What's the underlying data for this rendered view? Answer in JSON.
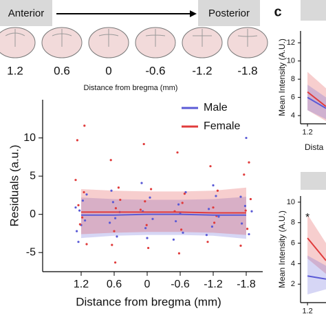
{
  "header": {
    "anterior": "Anterior",
    "posterior": "Posterior",
    "positions": [
      1.2,
      0.6,
      0,
      -0.6,
      -1.2,
      -1.8
    ],
    "xlabel": "Distance from bregma (mm)"
  },
  "panel_label": "c",
  "chart_data": [
    {
      "type": "scatter",
      "ylabel": "Residuals (a.u.)",
      "xlabel": "Distance from bregma (mm)",
      "xlim": [
        1.9,
        -2.1
      ],
      "xticks": [
        1.2,
        0.6,
        0,
        -0.6,
        -1.2,
        -1.8
      ],
      "ylim": [
        -7.5,
        15
      ],
      "yticks": [
        -5,
        0,
        5,
        10
      ],
      "legend": "upper right",
      "series": [
        {
          "name": "Male",
          "color": "#5a5ad6",
          "x": [
            1.28,
            1.23,
            1.17,
            1.13,
            1.25,
            1.1,
            1.2,
            1.3,
            0.68,
            0.62,
            0.55,
            0.5,
            0.65,
            0.58,
            0.08,
            0.03,
            -0.05,
            -0.1,
            0.1,
            0,
            -0.52,
            -0.57,
            -0.65,
            -0.7,
            -0.6,
            -0.48,
            -1.12,
            -1.18,
            -1.25,
            -1.3,
            -1.2,
            -1.08,
            -1.72,
            -1.78,
            -1.85,
            -1.9,
            -1.8,
            -1.7
          ],
          "values": [
            -2.2,
            0.5,
            1.8,
            -0.8,
            -3.6,
            2.6,
            -1.4,
            0.9,
            -1.1,
            1.6,
            -2.9,
            0.3,
            3.1,
            -0.5,
            0.4,
            -1.8,
            2.2,
            -0.6,
            4.1,
            -3.1,
            -0.9,
            1.3,
            -2.4,
            2.9,
            0.1,
            -3.3,
            0.7,
            -1.6,
            2.4,
            -0.3,
            3.8,
            -2.7,
            -1.2,
            1.1,
            -2.6,
            0.4,
            10,
            2.3
          ],
          "fit_x": [
            1.2,
            0.6,
            0,
            -0.6,
            -1.2,
            -1.8
          ],
          "fit": [
            -0.1,
            -0.1,
            0,
            0,
            -0.1,
            -0.1
          ],
          "band_lower": [
            -3.1,
            -2.8,
            -2.7,
            -2.7,
            -2.8,
            -3.2
          ],
          "band_upper": [
            2.2,
            2.0,
            1.9,
            1.9,
            2.0,
            2.3
          ]
        },
        {
          "name": "Female",
          "color": "#e03b3b",
          "x": [
            1.27,
            1.22,
            1.15,
            1.1,
            1.25,
            1.18,
            1.3,
            1.14,
            0.66,
            0.6,
            0.52,
            0.57,
            0.64,
            0.49,
            0.58,
            0.06,
            0.01,
            -0.07,
            0.12,
            -0.02,
            0.04,
            -0.55,
            -0.62,
            -0.68,
            -0.5,
            -0.58,
            -0.64,
            -1.15,
            -1.22,
            -1.28,
            -1.1,
            -1.2,
            -1.26,
            -1.76,
            -1.82,
            -1.88,
            -1.7,
            -1.79,
            -1.85
          ],
          "values": [
            9.7,
            -1.3,
            2.9,
            -3.9,
            1.2,
            -0.4,
            4.5,
            11.6,
            7.1,
            -2.2,
            3.5,
            0.8,
            -4.0,
            1.9,
            -6.3,
            9.2,
            -1.4,
            3.3,
            0.6,
            -4.4,
            1.7,
            8.1,
            -2.0,
            2.7,
            0.4,
            -5.1,
            1.5,
            6.3,
            -1.1,
            3.1,
            -3.6,
            0.9,
            -0.2,
            5.2,
            -1.9,
            2.0,
            -4.1,
            0.5,
            6.8
          ],
          "fit_x": [
            1.2,
            0.6,
            0,
            -0.6,
            -1.2,
            -1.8
          ],
          "fit": [
            0.3,
            0.3,
            0.3,
            0.3,
            0.2,
            0.2
          ],
          "band_lower": [
            -2.6,
            -2.4,
            -2.3,
            -2.3,
            -2.4,
            -2.7
          ],
          "band_upper": [
            3.3,
            3.1,
            3.0,
            3.0,
            3.1,
            3.5
          ]
        }
      ]
    },
    {
      "type": "line",
      "ylabel": "Mean Intensity (A.U.)",
      "xlabel": "Dista",
      "xlim": [
        1.35,
        0.8
      ],
      "xticks": [
        1.2
      ],
      "ylim": [
        3.1,
        13.3
      ],
      "yticks": [
        4,
        6,
        8,
        10,
        12
      ],
      "series": [
        {
          "color": "#e03b3b",
          "fit_x": [
            1.2,
            0.8
          ],
          "fit": [
            6.6,
            5.0
          ],
          "band_lower": [
            4.6,
            3.4
          ],
          "band_upper": [
            8.8,
            7.0
          ]
        },
        {
          "color": "#5a5ad6",
          "fit_x": [
            1.2,
            0.8
          ],
          "fit": [
            6.0,
            4.8
          ],
          "band_lower": [
            4.6,
            3.6
          ],
          "band_upper": [
            7.4,
            6.0
          ]
        }
      ]
    },
    {
      "type": "line",
      "ylabel": "Mean Intensity (A.U.)",
      "annotation": "*",
      "xlim": [
        1.35,
        0.8
      ],
      "xticks": [
        1.2
      ],
      "ylim": [
        0.2,
        10.6
      ],
      "yticks": [
        2,
        4,
        6,
        8,
        10
      ],
      "series": [
        {
          "color": "#e03b3b",
          "fit_x": [
            1.2,
            0.8
          ],
          "fit": [
            6.5,
            4.3
          ],
          "band_lower": [
            4.5,
            3.0
          ],
          "band_upper": [
            8.8,
            6.0
          ]
        },
        {
          "color": "#5a5ad6",
          "fit_x": [
            1.2,
            0.8
          ],
          "fit": [
            2.8,
            2.5
          ],
          "band_lower": [
            1.0,
            1.5
          ],
          "band_upper": [
            4.8,
            3.8
          ]
        }
      ]
    }
  ]
}
